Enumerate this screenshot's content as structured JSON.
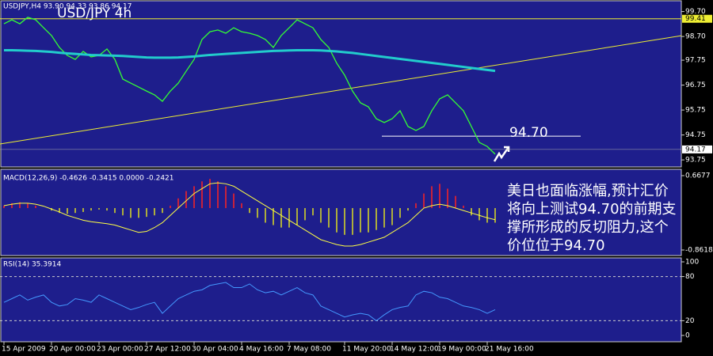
{
  "chart_data": [
    {
      "type": "line",
      "header": "USDJPY,H4  93.90 94.33 93.86 94.17",
      "title": "USD/JPY 4h",
      "categories": [
        "15 Apr 2009",
        null,
        null,
        null,
        null,
        null,
        "20 Apr 00:00",
        null,
        null,
        null,
        null,
        null,
        "23 Apr 00:00",
        null,
        null,
        null,
        null,
        null,
        "27 Apr 12:00",
        null,
        null,
        null,
        null,
        null,
        "30 Apr 04:00",
        null,
        null,
        null,
        null,
        null,
        "4 May 16:00",
        null,
        null,
        null,
        null,
        null,
        "7 May 08:00",
        null,
        null,
        null,
        null,
        null,
        null,
        "11 May 20:00",
        null,
        null,
        null,
        null,
        null,
        "14 May 12:00",
        null,
        null,
        null,
        null,
        null,
        "19 May 00:00",
        null,
        null,
        null,
        null,
        null,
        "21 May 16:00",
        null
      ],
      "series": [
        {
          "color": "#33ff33",
          "values": [
            99.21,
            99.37,
            99.21,
            99.47,
            99.37,
            99.05,
            98.74,
            98.26,
            97.94,
            97.78,
            98.1,
            97.88,
            97.94,
            98.2,
            97.78,
            96.99,
            96.83,
            96.67,
            96.51,
            96.36,
            96.1,
            96.51,
            96.83,
            97.31,
            97.78,
            98.58,
            98.89,
            98.96,
            98.83,
            99.05,
            98.89,
            98.83,
            98.74,
            98.58,
            98.26,
            98.74,
            99.05,
            99.37,
            99.21,
            99.05,
            98.58,
            98.26,
            97.63,
            97.15,
            96.51,
            96.04,
            95.88,
            95.4,
            95.25,
            95.4,
            95.72,
            95.09,
            94.93,
            95.09,
            95.72,
            96.2,
            96.36,
            96.04,
            95.72,
            95.09,
            94.45,
            94.29,
            93.98
          ]
        },
        {
          "color": "#22cccc",
          "values": [
            98.15,
            98.15,
            98.14,
            98.13,
            98.12,
            98.1,
            98.08,
            98.05,
            98.02,
            98.0,
            97.98,
            97.96,
            97.95,
            97.94,
            97.93,
            97.92,
            97.9,
            97.88,
            97.86,
            97.85,
            97.85,
            97.85,
            97.86,
            97.88,
            97.9,
            97.93,
            97.96,
            97.98,
            98.0,
            98.02,
            98.04,
            98.06,
            98.08,
            98.1,
            98.12,
            98.13,
            98.14,
            98.15,
            98.15,
            98.15,
            98.14,
            98.12,
            98.1,
            98.07,
            98.04,
            98.0,
            97.96,
            97.92,
            97.88,
            97.84,
            97.8,
            97.76,
            97.72,
            97.68,
            97.64,
            97.6,
            97.56,
            97.52,
            97.48,
            97.44,
            97.4,
            97.36,
            97.32
          ]
        }
      ],
      "ylim": [
        93.5,
        100.1
      ],
      "yticks": [
        {
          "value": 99.7,
          "label": "99.70"
        },
        {
          "value": 98.7,
          "label": "98.70"
        },
        {
          "value": 97.75,
          "label": "97.75"
        },
        {
          "value": 96.75,
          "label": "96.75"
        },
        {
          "value": 95.75,
          "label": "95.75"
        },
        {
          "value": 94.75,
          "label": "94.75"
        },
        {
          "value": 93.75,
          "label": "93.75"
        }
      ],
      "hline": 99.41,
      "last_price": 94.17,
      "trendline": [
        94.39,
        98.73
      ],
      "support": 94.7,
      "support_label": "94.70",
      "annotation": [
        "美日也面临涨幅,预计汇价",
        "将向上测试94.70的前期支",
        "撑所形成的反切阻力,这个",
        "价位位于94.70"
      ]
    },
    {
      "type": "bar",
      "title": "MACD(12,26,9) -0.4626 -0.3415 0.0000 -0.2421",
      "values": [
        0.05,
        0.1,
        0.12,
        0.1,
        0.05,
        0.0,
        -0.05,
        -0.1,
        -0.12,
        -0.1,
        -0.08,
        -0.05,
        -0.03,
        -0.05,
        -0.1,
        -0.15,
        -0.2,
        -0.2,
        -0.18,
        -0.15,
        -0.1,
        0.05,
        0.2,
        0.35,
        0.45,
        0.55,
        0.6,
        0.55,
        0.45,
        0.3,
        0.1,
        -0.1,
        -0.2,
        -0.3,
        -0.35,
        -0.4,
        -0.4,
        -0.35,
        -0.25,
        -0.15,
        -0.3,
        -0.4,
        -0.5,
        -0.55,
        -0.55,
        -0.5,
        -0.5,
        -0.45,
        -0.4,
        -0.35,
        -0.2,
        -0.05,
        0.1,
        0.3,
        0.45,
        0.5,
        0.4,
        0.25,
        0.05,
        -0.15,
        -0.25,
        -0.3,
        -0.3
      ],
      "pos_color": "#ff2222",
      "neg_color": "#dddd22",
      "signal": {
        "color": "#ffff44",
        "values": [
          0.05,
          0.08,
          0.1,
          0.1,
          0.08,
          0.04,
          -0.02,
          -0.08,
          -0.15,
          -0.2,
          -0.25,
          -0.28,
          -0.3,
          -0.32,
          -0.35,
          -0.4,
          -0.45,
          -0.5,
          -0.48,
          -0.4,
          -0.3,
          -0.15,
          0.0,
          0.15,
          0.3,
          0.4,
          0.5,
          0.52,
          0.5,
          0.45,
          0.35,
          0.25,
          0.15,
          0.05,
          -0.05,
          -0.15,
          -0.25,
          -0.35,
          -0.45,
          -0.55,
          -0.65,
          -0.7,
          -0.75,
          -0.78,
          -0.78,
          -0.75,
          -0.7,
          -0.65,
          -0.6,
          -0.5,
          -0.4,
          -0.3,
          -0.15,
          0.0,
          0.05,
          0.08,
          0.05,
          0.0,
          -0.05,
          -0.1,
          -0.15,
          -0.2,
          -0.24
        ]
      },
      "ylim": [
        -0.8618,
        0.6677
      ],
      "yticks": [
        0.6677,
        -0.8618
      ]
    },
    {
      "type": "line",
      "title": "RSI(14) 35.3914",
      "color": "#4499ff",
      "values": [
        45,
        50,
        55,
        48,
        52,
        55,
        45,
        40,
        42,
        50,
        48,
        45,
        55,
        50,
        45,
        40,
        35,
        38,
        42,
        45,
        30,
        40,
        50,
        55,
        60,
        62,
        68,
        70,
        72,
        65,
        65,
        70,
        62,
        58,
        60,
        55,
        60,
        65,
        58,
        55,
        40,
        35,
        30,
        25,
        28,
        30,
        28,
        20,
        28,
        35,
        38,
        40,
        55,
        60,
        58,
        52,
        50,
        45,
        40,
        38,
        35,
        30,
        35
      ],
      "ylim": [
        0,
        100
      ],
      "yticks": [
        100,
        80,
        20,
        0
      ],
      "levels": [
        80,
        20
      ]
    }
  ]
}
